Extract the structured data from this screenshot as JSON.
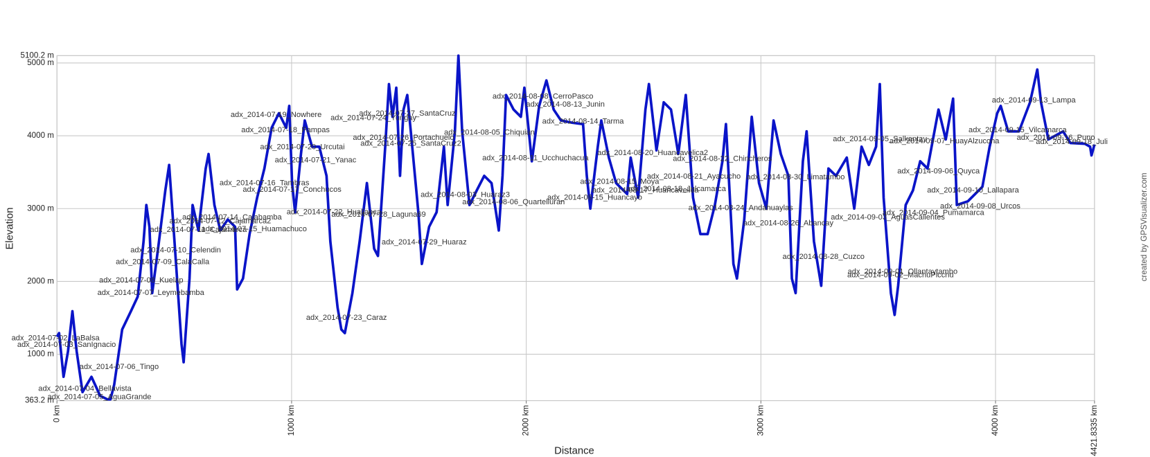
{
  "chart_data": {
    "type": "line",
    "xlabel": "Distance",
    "ylabel": "Elevation",
    "credit": "created by GPSVisualizer.com",
    "xlim": [
      0,
      4421.8335
    ],
    "ylim": [
      363.2,
      5100.2
    ],
    "xticks": [
      {
        "value": 0,
        "label": "0 km"
      },
      {
        "value": 1000,
        "label": "1000 km"
      },
      {
        "value": 2000,
        "label": "2000 km"
      },
      {
        "value": 3000,
        "label": "3000 km"
      },
      {
        "value": 4000,
        "label": "4000 km"
      },
      {
        "value": 4421.8335,
        "label": "4421.8335 km"
      }
    ],
    "yticks": [
      {
        "value": 363.2,
        "label": "363.2 m"
      },
      {
        "value": 1000,
        "label": "1000 m"
      },
      {
        "value": 2000,
        "label": "2000 m"
      },
      {
        "value": 3000,
        "label": "3000 m"
      },
      {
        "value": 4000,
        "label": "4000 m"
      },
      {
        "value": 5000,
        "label": "5000 m"
      },
      {
        "value": 5100.2,
        "label": "5100.2 m"
      }
    ],
    "grid": true,
    "color": "#0a14c8",
    "x": [
      0,
      9,
      28,
      47,
      66,
      84,
      109,
      147,
      184,
      215,
      228,
      244,
      278,
      315,
      344,
      369,
      381,
      394,
      406,
      431,
      462,
      478,
      503,
      531,
      540,
      565,
      578,
      603,
      634,
      646,
      671,
      696,
      728,
      759,
      768,
      793,
      821,
      853,
      884,
      915,
      946,
      977,
      990,
      1002,
      1015,
      1040,
      1056,
      1087,
      1118,
      1149,
      1165,
      1196,
      1212,
      1227,
      1259,
      1290,
      1321,
      1352,
      1368,
      1399,
      1415,
      1430,
      1446,
      1462,
      1477,
      1493,
      1508,
      1540,
      1555,
      1586,
      1618,
      1649,
      1665,
      1696,
      1711,
      1727,
      1758,
      1789,
      1821,
      1852,
      1883,
      1899,
      1914,
      1946,
      1977,
      1992,
      2024,
      2055,
      2086,
      2117,
      2148,
      2195,
      2242,
      2258,
      2273,
      2305,
      2320,
      2352,
      2383,
      2430,
      2445,
      2477,
      2508,
      2523,
      2555,
      2586,
      2617,
      2648,
      2680,
      2711,
      2742,
      2773,
      2804,
      2836,
      2851,
      2883,
      2898,
      2929,
      2961,
      2992,
      3023,
      3054,
      3085,
      3117,
      3132,
      3148,
      3179,
      3195,
      3226,
      3257,
      3288,
      3320,
      3366,
      3398,
      3429,
      3460,
      3491,
      3507,
      3523,
      3554,
      3570,
      3585,
      3617,
      3648,
      3679,
      3710,
      3757,
      3788,
      3819,
      3835,
      3882,
      3944,
      3975,
      4007,
      4022,
      4054,
      4100,
      4147,
      4178,
      4194,
      4225,
      4288,
      4319,
      4381,
      4403,
      4409,
      4421.8
    ],
    "values": [
      1240,
      1290,
      690,
      1040,
      1590,
      1040,
      480,
      690,
      430,
      380,
      380,
      580,
      1340,
      1590,
      1790,
      2550,
      3050,
      2750,
      1840,
      2450,
      3250,
      3600,
      2450,
      1140,
      890,
      2040,
      3050,
      2700,
      3550,
      3750,
      3050,
      2700,
      2850,
      2750,
      1890,
      2040,
      2650,
      3150,
      3550,
      4110,
      4310,
      4110,
      4410,
      3350,
      2950,
      3750,
      4210,
      3850,
      3850,
      3450,
      2550,
      1640,
      1340,
      1290,
      1840,
      2550,
      3350,
      2450,
      2350,
      3850,
      4710,
      4260,
      4660,
      3450,
      4360,
      4560,
      4060,
      2950,
      2240,
      2750,
      2950,
      3850,
      3050,
      4060,
      5100,
      4060,
      3050,
      3250,
      3450,
      3350,
      2700,
      3450,
      4560,
      4360,
      4260,
      4660,
      3650,
      4410,
      4760,
      4360,
      4210,
      4180,
      4160,
      3450,
      3000,
      3850,
      4210,
      3700,
      3350,
      3200,
      3700,
      3150,
      4360,
      4710,
      3800,
      4460,
      4360,
      3750,
      4560,
      3150,
      2650,
      2650,
      3050,
      3650,
      4160,
      2240,
      2040,
      2850,
      4260,
      3350,
      3000,
      4210,
      3750,
      3450,
      2040,
      1840,
      3650,
      4060,
      2550,
      1940,
      3550,
      3450,
      3700,
      3000,
      3850,
      3600,
      3850,
      4710,
      3150,
      1840,
      1540,
      1940,
      3050,
      3250,
      3650,
      3550,
      4360,
      3950,
      4510,
      3050,
      3100,
      3300,
      3850,
      4310,
      4410,
      4060,
      4060,
      4460,
      4910,
      4460,
      3950,
      4060,
      3900,
      3890,
      3850,
      3730,
      3880
    ],
    "annotations": [
      {
        "text": "adx_2014-07-02_LaBalsa",
        "x": -6,
        "y": 1218
      },
      {
        "text": "adx_2014-07-03_SanIgnacio",
        "x": 41,
        "y": 1127
      },
      {
        "text": "adx_2014-07-06_Tingo",
        "x": 265,
        "y": 826
      },
      {
        "text": "adx_2014-07-04_Bellavista",
        "x": 119,
        "y": 524
      },
      {
        "text": "adx_2014-07-05_AguaGrande",
        "x": 181,
        "y": 413
      },
      {
        "text": "adx_2014-07-07_Leymebamba",
        "x": 400,
        "y": 1841
      },
      {
        "text": "adx_2014-07-08_Kuelap",
        "x": 359,
        "y": 2012
      },
      {
        "text": "adx_2014-07-09_CalaCalla",
        "x": 450,
        "y": 2264
      },
      {
        "text": "adx_2014-07-10_Celendin",
        "x": 506,
        "y": 2425
      },
      {
        "text": "adx_2014-07-11_Cajamarca",
        "x": 603,
        "y": 2706
      },
      {
        "text": "adx_2014-07-12_Cajamarca2",
        "x": 696,
        "y": 2827
      },
      {
        "text": "adx_2014-07-14_Cajabamba",
        "x": 746,
        "y": 2877
      },
      {
        "text": "adx_2014-07-15_Huamachuco",
        "x": 840,
        "y": 2716
      },
      {
        "text": "adx_2014-07-16_Tambras",
        "x": 884,
        "y": 3350
      },
      {
        "text": "adx_2014-07-17_Conchucos",
        "x": 1002,
        "y": 3259
      },
      {
        "text": "adx_2014-07-19_Nowhere",
        "x": 934,
        "y": 4285
      },
      {
        "text": "adx_2014-07-18_Pampas",
        "x": 974,
        "y": 4074
      },
      {
        "text": "adx_2014-07-20_Urcutai",
        "x": 1046,
        "y": 3843
      },
      {
        "text": "adx_2014-07-21_Yanac",
        "x": 1102,
        "y": 3662
      },
      {
        "text": "adx_2014-07-22_Huallanca",
        "x": 1180,
        "y": 2948
      },
      {
        "text": "adx_2014-07-23_Caraz",
        "x": 1234,
        "y": 1499
      },
      {
        "text": "adx_2014-07-24_Yungay",
        "x": 1349,
        "y": 4245
      },
      {
        "text": "adx_2014-07-28_Laguna69",
        "x": 1371,
        "y": 2917
      },
      {
        "text": "adx_2014-07-27_SantaCruz",
        "x": 1493,
        "y": 4305
      },
      {
        "text": "adx_2014-07-26_Portachuelo",
        "x": 1477,
        "y": 3973
      },
      {
        "text": "adx_2014-07-25_SantaCruz2",
        "x": 1508,
        "y": 3893
      },
      {
        "text": "adx_2014-07-29_Huaraz",
        "x": 1565,
        "y": 2535
      },
      {
        "text": "adx_2014-08-03_Huaraz3",
        "x": 1740,
        "y": 3189
      },
      {
        "text": "adx_2014-08-05_Chiquian",
        "x": 1843,
        "y": 4044
      },
      {
        "text": "adx_2014-08-06_Quartelluran",
        "x": 1946,
        "y": 3088
      },
      {
        "text": "adx_2014-08-08_CerroPasco",
        "x": 2071,
        "y": 4537
      },
      {
        "text": "adx_2014-08-13_Junin",
        "x": 2167,
        "y": 4426
      },
      {
        "text": "adx_2014-08-14_Tarma",
        "x": 2242,
        "y": 4195
      },
      {
        "text": "adx_2014-08-11_Ucchuchacua",
        "x": 2039,
        "y": 3692
      },
      {
        "text": "adx_2014-08-20_Huancavelica2",
        "x": 2539,
        "y": 3762
      },
      {
        "text": "adx_2014-08-15_Moya",
        "x": 2398,
        "y": 3370
      },
      {
        "text": "adx_2014-08-15_Huancayo",
        "x": 2292,
        "y": 3149
      },
      {
        "text": "adx_2014-08-17_Huancavelica",
        "x": 2508,
        "y": 3249
      },
      {
        "text": "adx_2014-08-21_Ayacucho",
        "x": 2714,
        "y": 3440
      },
      {
        "text": "adx_2014-08-22_Chincheros",
        "x": 2836,
        "y": 3682
      },
      {
        "text": "adx_2014-08-18_Julcamarca",
        "x": 2639,
        "y": 3269
      },
      {
        "text": "adx_2014-08-24_Andahuaylas",
        "x": 2914,
        "y": 3008
      },
      {
        "text": "adx_2014-08-26_Abancay",
        "x": 3117,
        "y": 2797
      },
      {
        "text": "adx_2014-08-28_Cuzco",
        "x": 3267,
        "y": 2334
      },
      {
        "text": "adx_2014-08-30_Limatambo",
        "x": 3148,
        "y": 3430
      },
      {
        "text": "adx_2014-09-01_Ollantaytambo",
        "x": 3604,
        "y": 2133
      },
      {
        "text": "adx_2014-09-02_MachuPicchu",
        "x": 3595,
        "y": 2083
      },
      {
        "text": "adx_2014-09-03_AguasCalientes",
        "x": 3541,
        "y": 2877
      },
      {
        "text": "adx_2014-09-04_Pumamarca",
        "x": 3735,
        "y": 2938
      },
      {
        "text": "adx_2014-09-08_Urcos",
        "x": 3935,
        "y": 3028
      },
      {
        "text": "adx_2014-09-10_Lallapara",
        "x": 3904,
        "y": 3249
      },
      {
        "text": "adx_2014-09-05_Salkantay",
        "x": 3507,
        "y": 3953
      },
      {
        "text": "adx_2014-09-07_HuayAlzucona",
        "x": 3782,
        "y": 3923
      },
      {
        "text": "adx_2014-09-06_Quyca",
        "x": 3757,
        "y": 3511
      },
      {
        "text": "adx_2014-09-13_Lampa",
        "x": 4163,
        "y": 4486
      },
      {
        "text": "adx_2014-09-15_Vilcamarca",
        "x": 4094,
        "y": 4074
      },
      {
        "text": "adx_2014-09-16_Puno",
        "x": 4257,
        "y": 3973
      },
      {
        "text": "adx_2014-09-18_Juli",
        "x": 4325,
        "y": 3913
      }
    ]
  }
}
